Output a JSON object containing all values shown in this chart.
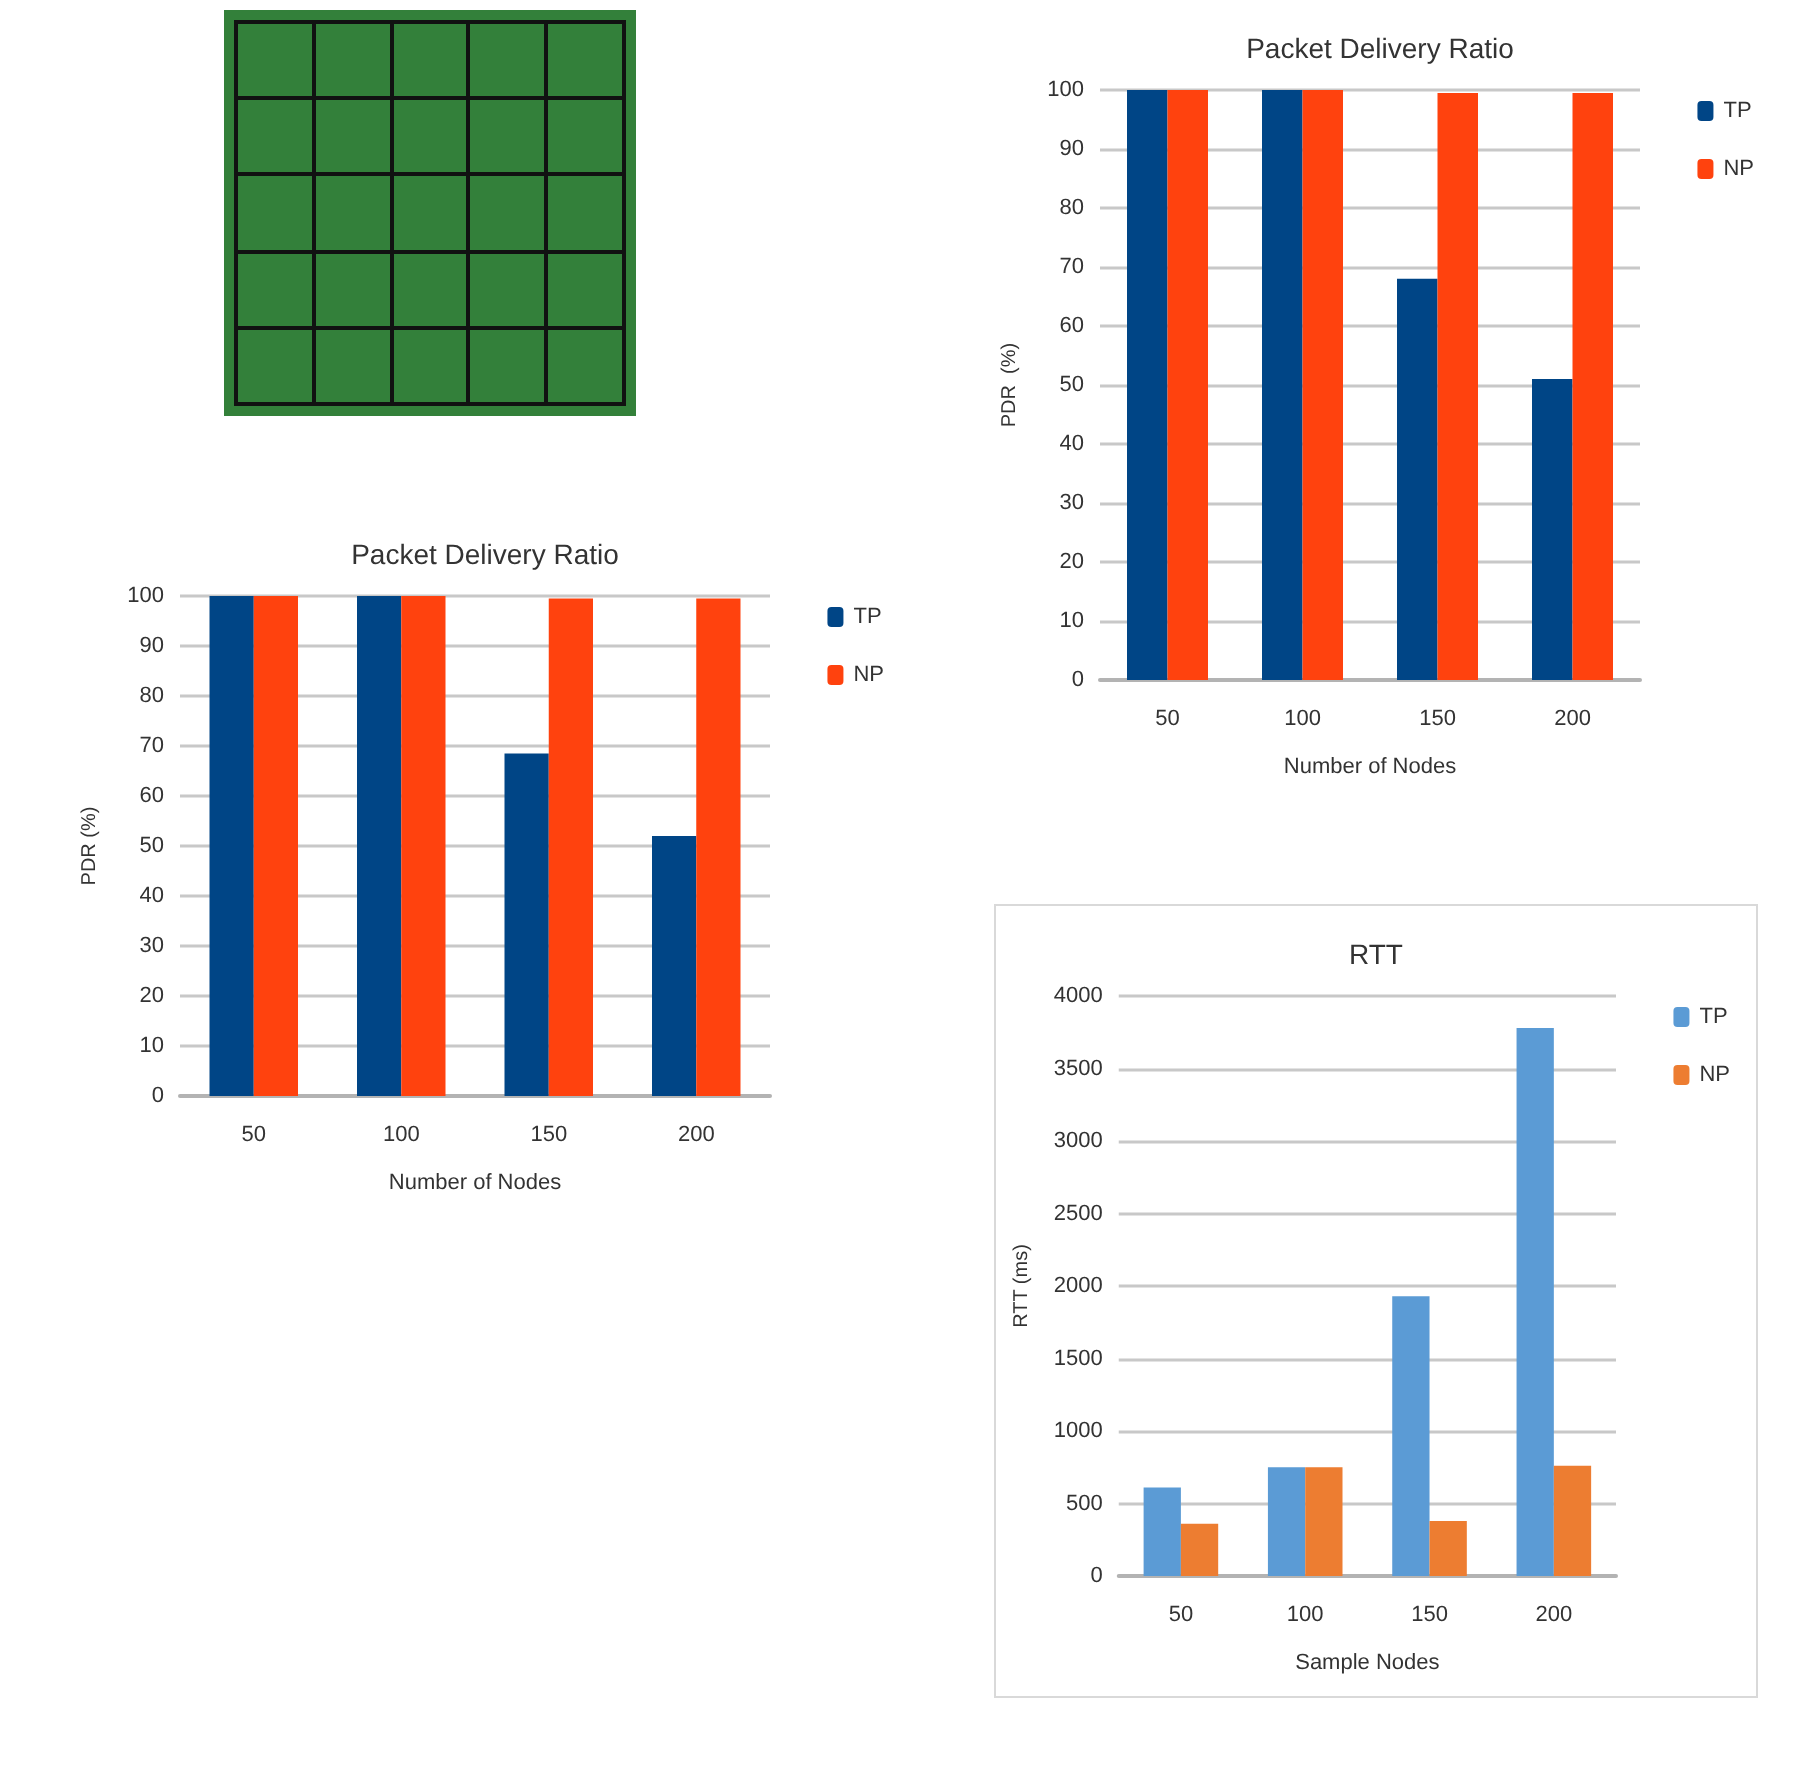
{
  "chart_data": [
    {
      "type": "bar",
      "title": "Packet Delivery Ratio",
      "xlabel": "Number of Nodes",
      "ylabel": "PDR  (%)",
      "categories": [
        "50",
        "100",
        "150",
        "200"
      ],
      "series": [
        {
          "name": "TP",
          "color": "#004586",
          "values": [
            100,
            100,
            68,
            51
          ]
        },
        {
          "name": "NP",
          "color": "#ff420e",
          "values": [
            100,
            100,
            99.5,
            99.5
          ]
        }
      ],
      "ylim": [
        0,
        100
      ],
      "yticks": [
        0,
        10,
        20,
        30,
        40,
        50,
        60,
        70,
        80,
        90,
        100
      ],
      "grid": "y",
      "legend": "top right"
    },
    {
      "type": "bar",
      "title": "Packet Delivery Ratio",
      "xlabel": "Number of Nodes",
      "ylabel": "PDR (%)",
      "categories": [
        "50",
        "100",
        "150",
        "200"
      ],
      "series": [
        {
          "name": "TP",
          "color": "#004586",
          "values": [
            100,
            100,
            68.5,
            52
          ]
        },
        {
          "name": "NP",
          "color": "#ff420e",
          "values": [
            100,
            100,
            99.5,
            99.5
          ]
        }
      ],
      "ylim": [
        0,
        100
      ],
      "yticks": [
        0,
        10,
        20,
        30,
        40,
        50,
        60,
        70,
        80,
        90,
        100
      ],
      "grid": "y",
      "legend": "top right"
    },
    {
      "type": "bar",
      "title": "RTT",
      "xlabel": "Sample Nodes",
      "ylabel": "RTT (ms)",
      "categories": [
        "50",
        "100",
        "150",
        "200"
      ],
      "series": [
        {
          "name": "TP",
          "color": "#5b9bd5",
          "values": [
            610,
            750,
            1930,
            3780
          ]
        },
        {
          "name": "NP",
          "color": "#ed7d31",
          "values": [
            360,
            750,
            380,
            760
          ]
        }
      ],
      "ylim": [
        0,
        4000
      ],
      "yticks": [
        0,
        500,
        1000,
        1500,
        2000,
        2500,
        3000,
        3500,
        4000
      ],
      "grid": "y",
      "legend": "top right"
    }
  ]
}
